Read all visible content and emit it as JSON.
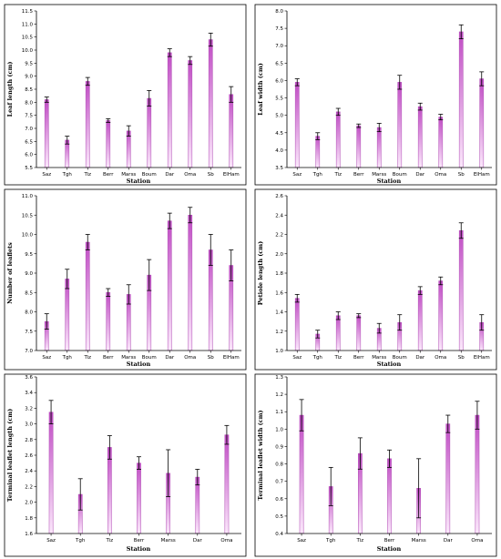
{
  "colors": {
    "bar_top": "#c04cc4",
    "bar_bottom": "#fbe8fb",
    "bar_stroke": "#b04ab4"
  },
  "chart_data": [
    {
      "type": "bar",
      "xlabel": "Station",
      "ylabel": "Leaf length (cm)",
      "categories": [
        "Saz",
        "Tgh",
        "Tiz",
        "Berr",
        "Marss",
        "Boum",
        "Dar",
        "Oma",
        "Sb",
        "ElHam"
      ],
      "values": [
        8.1,
        6.55,
        8.8,
        7.3,
        6.9,
        8.15,
        9.9,
        9.6,
        10.4,
        8.3
      ],
      "errors": [
        0.1,
        0.15,
        0.15,
        0.07,
        0.2,
        0.3,
        0.15,
        0.15,
        0.25,
        0.3
      ],
      "ylim": [
        5.5,
        11.5
      ],
      "yticks": [
        "5.5",
        "6.0",
        "6.5",
        "7.0",
        "7.5",
        "8.0",
        "8.5",
        "9.0",
        "9.5",
        "10.0",
        "10.5",
        "11.0",
        "11.5"
      ]
    },
    {
      "type": "bar",
      "xlabel": "Station",
      "ylabel": "Leaf width (cm)",
      "categories": [
        "Saz",
        "Tgh",
        "Tiz",
        "Berr",
        "Marss",
        "Boum",
        "Dar",
        "Oma",
        "Sb",
        "ElHam"
      ],
      "values": [
        5.95,
        4.4,
        5.1,
        4.7,
        4.65,
        5.95,
        5.25,
        4.95,
        7.4,
        6.05
      ],
      "errors": [
        0.1,
        0.1,
        0.1,
        0.05,
        0.12,
        0.2,
        0.1,
        0.08,
        0.2,
        0.2
      ],
      "ylim": [
        3.5,
        8.0
      ],
      "yticks": [
        "3.5",
        "4.0",
        "4.5",
        "5.0",
        "5.5",
        "6.0",
        "6.5",
        "7.0",
        "7.5",
        "8.0"
      ]
    },
    {
      "type": "bar",
      "xlabel": "Station",
      "ylabel": "Number of leaflets",
      "categories": [
        "Saz",
        "Tgh",
        "Tiz",
        "Berr",
        "Marss",
        "Boum",
        "Dar",
        "Oma",
        "Sb",
        "ElHam"
      ],
      "values": [
        7.75,
        8.85,
        9.8,
        8.5,
        8.45,
        8.95,
        10.35,
        10.5,
        9.6,
        9.2
      ],
      "errors": [
        0.2,
        0.25,
        0.2,
        0.1,
        0.25,
        0.4,
        0.2,
        0.2,
        0.4,
        0.4
      ],
      "ylim": [
        7.0,
        11.0
      ],
      "yticks": [
        "7.0",
        "7.5",
        "8.0",
        "8.5",
        "9.0",
        "9.5",
        "10.0",
        "10.5",
        "11.0"
      ]
    },
    {
      "type": "bar",
      "xlabel": "Station",
      "ylabel": "Petiole length (cm)",
      "categories": [
        "Saz",
        "Tgh",
        "Tiz",
        "Berr",
        "Marss",
        "Boum",
        "Dar",
        "Oma",
        "Sb",
        "ElHam"
      ],
      "values": [
        1.54,
        1.17,
        1.36,
        1.36,
        1.23,
        1.29,
        1.62,
        1.72,
        2.24,
        1.29
      ],
      "errors": [
        0.04,
        0.04,
        0.04,
        0.02,
        0.05,
        0.08,
        0.04,
        0.04,
        0.08,
        0.08
      ],
      "ylim": [
        1.0,
        2.6
      ],
      "yticks": [
        "1.0",
        "1.2",
        "1.4",
        "1.6",
        "1.8",
        "2.0",
        "2.2",
        "2.4",
        "2.6"
      ]
    },
    {
      "type": "bar",
      "xlabel": "Station",
      "ylabel": "Terminal leaflet length (cm)",
      "categories": [
        "Saz",
        "Tgh",
        "Tiz",
        "Berr",
        "Marss",
        "Dar",
        "Oma"
      ],
      "values": [
        3.15,
        2.1,
        2.7,
        2.5,
        2.37,
        2.32,
        2.86
      ],
      "errors": [
        0.15,
        0.2,
        0.15,
        0.08,
        0.3,
        0.1,
        0.12
      ],
      "ylim": [
        1.6,
        3.6
      ],
      "yticks": [
        "1.6",
        "1.8",
        "2.0",
        "2.2",
        "2.4",
        "2.6",
        "2.8",
        "3.0",
        "3.2",
        "3.4",
        "3.6"
      ]
    },
    {
      "type": "bar",
      "xlabel": "Station",
      "ylabel": "Terminal leaflet width (cm)",
      "categories": [
        "Saz",
        "Tgh",
        "Tiz",
        "Berr",
        "Marss",
        "Dar",
        "Oma"
      ],
      "values": [
        1.08,
        0.67,
        0.86,
        0.83,
        0.66,
        1.03,
        1.08
      ],
      "errors": [
        0.09,
        0.11,
        0.09,
        0.05,
        0.17,
        0.05,
        0.08
      ],
      "ylim": [
        0.4,
        1.3
      ],
      "yticks": [
        "0.4",
        "0.5",
        "0.6",
        "0.7",
        "0.8",
        "0.9",
        "1.0",
        "1.1",
        "1.2",
        "1.3"
      ]
    }
  ]
}
